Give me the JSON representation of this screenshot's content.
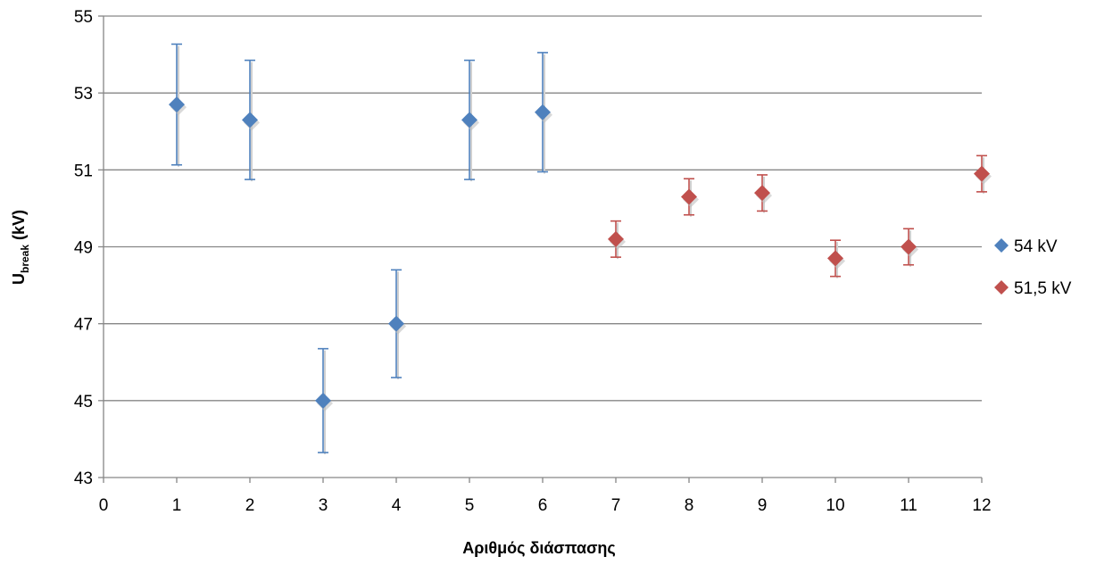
{
  "chart_data": {
    "type": "scatter",
    "title": "",
    "xlabel": "Αριθμός διάσπασης",
    "ylabel": {
      "main": "U",
      "sub": "break",
      "unit": " (kV)"
    },
    "xlim": [
      0,
      12
    ],
    "ylim": [
      43,
      55
    ],
    "xticks": [
      0,
      1,
      2,
      3,
      4,
      5,
      6,
      7,
      8,
      9,
      10,
      11,
      12
    ],
    "yticks": [
      43,
      45,
      47,
      49,
      51,
      53,
      55
    ],
    "grid": "horizontal",
    "legend_position": "right",
    "series": [
      {
        "name": "54 kV",
        "color": "#4f81bd",
        "marker": "diamond",
        "x": [
          1,
          2,
          3,
          4,
          5,
          6
        ],
        "y": [
          52.7,
          52.3,
          45.0,
          47.0,
          52.3,
          52.5
        ],
        "error": [
          1.57,
          1.55,
          1.35,
          1.4,
          1.55,
          1.55
        ]
      },
      {
        "name": "51,5 kV",
        "color": "#c0504d",
        "marker": "diamond",
        "x": [
          7,
          8,
          9,
          10,
          11,
          12
        ],
        "y": [
          49.2,
          50.3,
          50.4,
          48.7,
          49.0,
          50.9
        ],
        "error": [
          0.47,
          0.47,
          0.47,
          0.47,
          0.47,
          0.47
        ]
      }
    ]
  }
}
